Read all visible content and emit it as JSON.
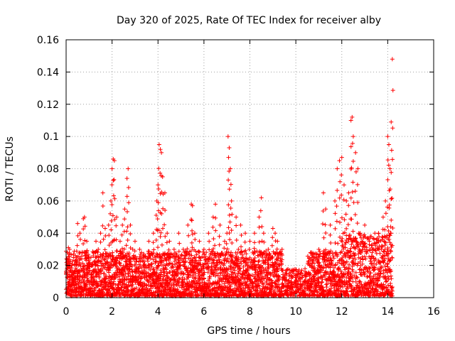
{
  "chart_data": {
    "type": "scatter",
    "title": "Day 320 of 2025, Rate Of TEC Index for receiver alby",
    "xlabel": "GPS time / hours",
    "ylabel": "ROTI / TECUs",
    "xlim": [
      0,
      16
    ],
    "ylim": [
      0,
      0.16
    ],
    "xticks": [
      0,
      2,
      4,
      6,
      8,
      10,
      12,
      14,
      16
    ],
    "yticks": [
      0,
      0.02,
      0.04,
      0.06,
      0.08,
      0.1,
      0.12,
      0.14,
      0.16
    ],
    "ytick_labels": [
      "0",
      "0.02",
      "0.04",
      "0.06",
      "0.08",
      "0.1",
      "0.12",
      "0.14",
      "0.16"
    ],
    "grid": true,
    "marker": "+",
    "marker_color": "#ff0000",
    "data_extent_hours": [
      0,
      14.2
    ],
    "series": [
      {
        "x": [
          0.05,
          0.1,
          0.15,
          0.25,
          0.35,
          0.45,
          0.5,
          0.6,
          0.75,
          0.8,
          0.9,
          1.0,
          1.2,
          1.3,
          1.4,
          1.5,
          1.6,
          1.7,
          1.85,
          1.95,
          2.0,
          2.05,
          2.1,
          2.2,
          2.35,
          2.45,
          2.55,
          2.65,
          2.7,
          2.8,
          2.9,
          3.0,
          3.2,
          3.4,
          3.6,
          3.8,
          3.95,
          4.0,
          4.05,
          4.1,
          4.15,
          4.2,
          4.3,
          4.4,
          4.5,
          4.7,
          4.9,
          5.1,
          5.3,
          5.45,
          5.5,
          5.6,
          5.8,
          6.0,
          6.2,
          6.4,
          6.5,
          6.7,
          6.9,
          7.0,
          7.05,
          7.1,
          7.15,
          7.2,
          7.4,
          7.5,
          7.6,
          7.8,
          8.0,
          8.2,
          8.4,
          8.5,
          8.6,
          8.8,
          9.0,
          9.1,
          9.2,
          9.4,
          9.6,
          9.8,
          10.0,
          10.2,
          10.4,
          10.6,
          10.8,
          11.0,
          11.2,
          11.3,
          11.5,
          11.7,
          11.8,
          11.9,
          12.0,
          12.1,
          12.2,
          12.3,
          12.4,
          12.45,
          12.5,
          12.6,
          12.7,
          12.8,
          13.0,
          13.2,
          13.4,
          13.6,
          13.8,
          13.9,
          14.0,
          14.05,
          14.1,
          14.15,
          14.2
        ],
        "y": [
          0.028,
          0.031,
          0.03,
          0.02,
          0.015,
          0.025,
          0.046,
          0.04,
          0.049,
          0.05,
          0.035,
          0.025,
          0.028,
          0.035,
          0.03,
          0.04,
          0.065,
          0.043,
          0.045,
          0.06,
          0.08,
          0.086,
          0.085,
          0.05,
          0.035,
          0.045,
          0.055,
          0.074,
          0.08,
          0.045,
          0.03,
          0.035,
          0.03,
          0.025,
          0.035,
          0.04,
          0.06,
          0.07,
          0.095,
          0.092,
          0.09,
          0.075,
          0.065,
          0.04,
          0.035,
          0.03,
          0.04,
          0.03,
          0.045,
          0.058,
          0.057,
          0.04,
          0.035,
          0.03,
          0.04,
          0.05,
          0.058,
          0.045,
          0.035,
          0.04,
          0.1,
          0.093,
          0.08,
          0.06,
          0.05,
          0.03,
          0.045,
          0.04,
          0.035,
          0.04,
          0.05,
          0.062,
          0.04,
          0.03,
          0.043,
          0.04,
          0.035,
          0.03,
          0.015,
          0.012,
          0.01,
          0.015,
          0.018,
          0.02,
          0.025,
          0.03,
          0.065,
          0.055,
          0.045,
          0.06,
          0.08,
          0.085,
          0.087,
          0.07,
          0.06,
          0.065,
          0.11,
          0.112,
          0.1,
          0.09,
          0.08,
          0.04,
          0.045,
          0.035,
          0.03,
          0.04,
          0.05,
          0.06,
          0.1,
          0.095,
          0.08,
          0.109,
          0.148
        ]
      }
    ]
  }
}
